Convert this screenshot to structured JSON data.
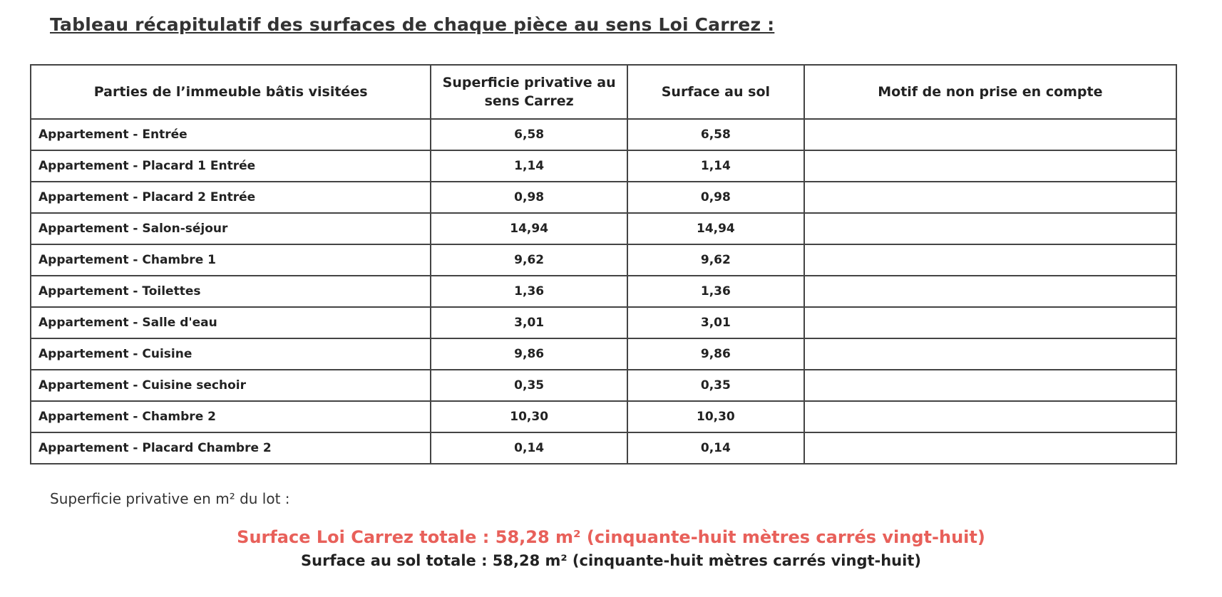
{
  "title": "Tableau récapitulatif des surfaces de chaque pièce au sens Loi Carrez :",
  "table": {
    "headers": [
      "Parties de l’immeuble bâtis visitées",
      "Superficie privative au sens Carrez",
      "Surface au sol",
      "Motif de non prise en compte"
    ],
    "rows": [
      {
        "piece": "Appartement - Entrée",
        "carrez": "6,58",
        "sol": "6,58",
        "motif": ""
      },
      {
        "piece": "Appartement - Placard 1 Entrée",
        "carrez": "1,14",
        "sol": "1,14",
        "motif": ""
      },
      {
        "piece": "Appartement - Placard 2 Entrée",
        "carrez": "0,98",
        "sol": "0,98",
        "motif": ""
      },
      {
        "piece": "Appartement - Salon-séjour",
        "carrez": "14,94",
        "sol": "14,94",
        "motif": ""
      },
      {
        "piece": "Appartement - Chambre 1",
        "carrez": "9,62",
        "sol": "9,62",
        "motif": ""
      },
      {
        "piece": "Appartement - Toilettes",
        "carrez": "1,36",
        "sol": "1,36",
        "motif": ""
      },
      {
        "piece": "Appartement - Salle d'eau",
        "carrez": "3,01",
        "sol": "3,01",
        "motif": ""
      },
      {
        "piece": "Appartement - Cuisine",
        "carrez": "9,86",
        "sol": "9,86",
        "motif": ""
      },
      {
        "piece": "Appartement - Cuisine sechoir",
        "carrez": "0,35",
        "sol": "0,35",
        "motif": ""
      },
      {
        "piece": "Appartement - Chambre 2",
        "carrez": "10,30",
        "sol": "10,30",
        "motif": ""
      },
      {
        "piece": "Appartement - Placard Chambre 2",
        "carrez": "0,14",
        "sol": "0,14",
        "motif": ""
      }
    ]
  },
  "summary": {
    "lot_label": "Superficie privative en m² du lot :",
    "total_carrez": "Surface Loi Carrez totale : 58,28 m² (cinquante-huit mètres carrés vingt-huit)",
    "total_sol": "Surface au sol totale : 58,28 m² (cinquante-huit mètres carrés vingt-huit)",
    "accent_color": "#e8605a"
  }
}
